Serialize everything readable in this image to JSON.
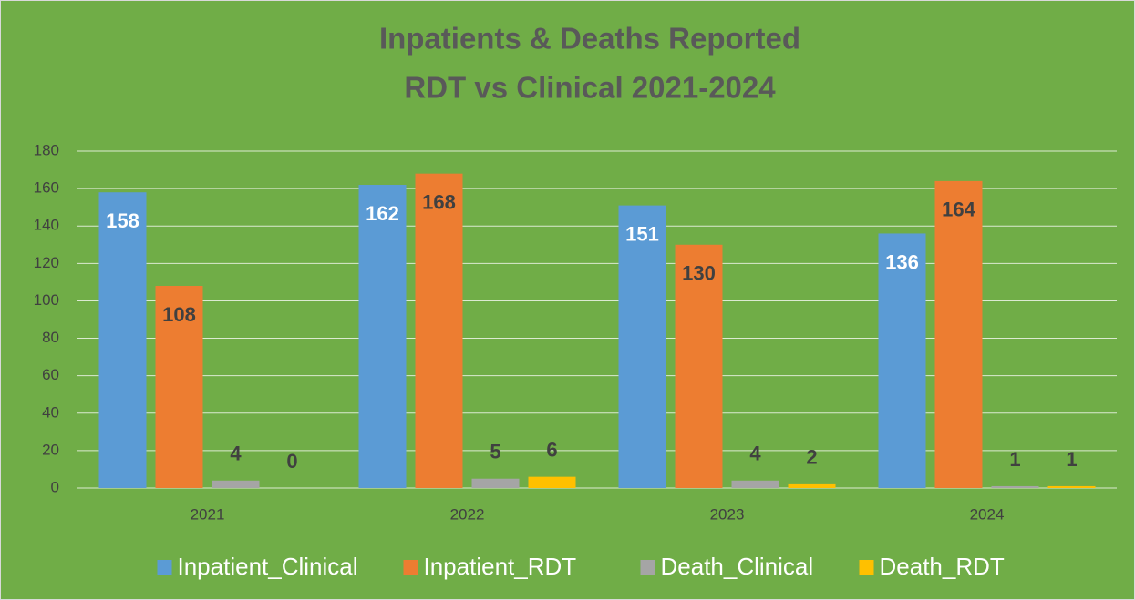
{
  "chart_data": {
    "type": "bar",
    "title": [
      "Inpatients & Deaths Reported",
      "RDT vs Clinical 2021-2024"
    ],
    "categories": [
      "2021",
      "2022",
      "2023",
      "2024"
    ],
    "series": [
      {
        "name": "Inpatient_Clinical",
        "color": "#5b9bd5",
        "values": [
          158,
          162,
          151,
          136
        ]
      },
      {
        "name": "Inpatient_RDT",
        "color": "#ed7d31",
        "values": [
          108,
          168,
          130,
          164
        ]
      },
      {
        "name": "Death_Clinical",
        "color": "#a5a5a5",
        "values": [
          4,
          5,
          4,
          1
        ]
      },
      {
        "name": "Death_RDT",
        "color": "#ffc000",
        "values": [
          0,
          6,
          2,
          1
        ]
      }
    ],
    "ylim": [
      0,
      180
    ],
    "yticks": [
      0,
      20,
      40,
      60,
      80,
      100,
      120,
      140,
      160,
      180
    ],
    "grid": true,
    "legend": "bottom"
  }
}
